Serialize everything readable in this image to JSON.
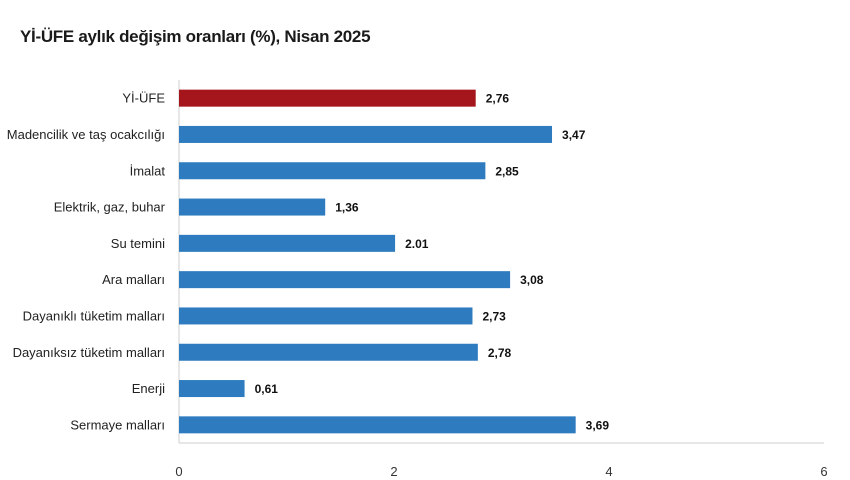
{
  "chart_data": {
    "type": "bar",
    "orientation": "horizontal",
    "title": "Yİ-ÜFE aylık değişim oranları (%), Nisan 2025",
    "categories": [
      "Yİ-ÜFE",
      "Madencilik ve taş ocakcılığı",
      "İmalat",
      "Elektrik, gaz, buhar",
      "Su temini",
      "Ara malları",
      "Dayanıklı tüketim malları",
      "Dayanıksız tüketim malları",
      "Enerji",
      "Sermaye malları"
    ],
    "values": [
      2.76,
      3.47,
      2.85,
      1.36,
      2.01,
      3.08,
      2.73,
      2.78,
      0.61,
      3.69
    ],
    "value_labels": [
      "2,76",
      "3,47",
      "2,85",
      "1,36",
      "2.01",
      "3,08",
      "2,73",
      "2,78",
      "0,61",
      "3,69"
    ],
    "highlight_index": 0,
    "colors": {
      "highlight": "#a5151c",
      "bar": "#2e7cbf",
      "axis": "#cfcfcf"
    },
    "xlim": [
      0,
      6
    ],
    "xticks": [
      0,
      2,
      4,
      6
    ],
    "xtick_labels": [
      "0",
      "2",
      "4",
      "6"
    ],
    "xlabel": "",
    "ylabel": "",
    "grid": false,
    "legend": "none"
  }
}
